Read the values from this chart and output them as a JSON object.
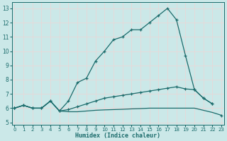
{
  "xlabel": "Humidex (Indice chaleur)",
  "bg_color": "#cbe8e8",
  "grid_color": "#f0f0f0",
  "line_color": "#1a6b6b",
  "xlim": [
    -0.3,
    23.3
  ],
  "ylim": [
    4.85,
    13.45
  ],
  "yticks": [
    5,
    6,
    7,
    8,
    9,
    10,
    11,
    12,
    13
  ],
  "xticks": [
    0,
    1,
    2,
    3,
    4,
    5,
    6,
    7,
    8,
    9,
    10,
    11,
    12,
    13,
    14,
    15,
    16,
    17,
    18,
    19,
    20,
    21,
    22,
    23
  ],
  "line1_x": [
    0,
    1,
    2,
    3,
    4,
    5,
    6,
    7,
    8,
    9,
    10,
    11,
    12,
    13,
    14,
    15,
    16,
    17,
    18,
    19,
    20,
    21,
    22
  ],
  "line1_y": [
    6.0,
    6.2,
    6.0,
    6.0,
    6.5,
    5.8,
    6.5,
    7.8,
    8.1,
    9.3,
    10.0,
    10.8,
    11.0,
    11.5,
    11.5,
    12.0,
    12.5,
    13.0,
    12.2,
    9.7,
    7.3,
    6.7,
    6.3
  ],
  "line2_x": [
    0,
    1,
    2,
    3,
    4,
    5,
    6,
    7,
    8,
    9,
    10,
    11,
    12,
    13,
    14,
    15,
    16,
    17,
    18,
    19,
    20,
    21,
    22
  ],
  "line2_y": [
    6.0,
    6.2,
    6.0,
    6.0,
    6.5,
    5.8,
    5.9,
    6.1,
    6.3,
    6.5,
    6.7,
    6.8,
    6.9,
    7.0,
    7.1,
    7.2,
    7.3,
    7.4,
    7.5,
    7.35,
    7.3,
    6.7,
    6.3
  ],
  "line3_x": [
    0,
    1,
    2,
    3,
    4,
    5,
    6,
    7,
    8,
    9,
    10,
    11,
    12,
    13,
    14,
    15,
    16,
    17,
    18,
    19,
    20,
    21,
    22,
    23
  ],
  "line3_y": [
    6.0,
    6.2,
    6.0,
    6.0,
    6.5,
    5.8,
    5.75,
    5.75,
    5.8,
    5.85,
    5.88,
    5.9,
    5.92,
    5.95,
    5.97,
    6.0,
    6.0,
    6.0,
    6.0,
    6.0,
    6.0,
    5.85,
    5.7,
    5.5
  ],
  "xlabel_fontsize": 6.0,
  "tick_fontsize_x": 5.0,
  "tick_fontsize_y": 5.5
}
